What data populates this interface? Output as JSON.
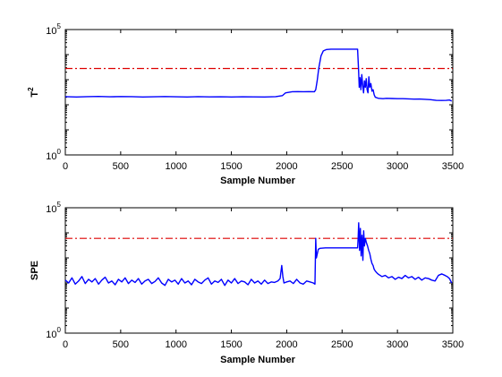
{
  "colors": {
    "signal": "#0000ff",
    "limit": "#dd0000",
    "axes": "#000000",
    "background": "#ffffff"
  },
  "chart_data": [
    {
      "type": "line",
      "title": "",
      "xlabel": "Sample Number",
      "ylabel": "T",
      "ylabel_sup": "2",
      "xlim": [
        0,
        3500
      ],
      "ylim": [
        1,
        100000
      ],
      "yscale": "log",
      "grid": false,
      "legend": "none",
      "xticks": [
        "0",
        "500",
        "1000",
        "1500",
        "2000",
        "2500",
        "3000",
        "3500"
      ],
      "yticks": [
        {
          "value": 1,
          "base": "10",
          "exp": "0"
        },
        {
          "value": 100000,
          "base": "10",
          "exp": "5"
        }
      ],
      "limit_line": {
        "y": 2800,
        "style": "dash-dot"
      },
      "series": [
        {
          "x": [
            0,
            100,
            200,
            300,
            400,
            500,
            600,
            700,
            800,
            900,
            1000,
            1100,
            1200,
            1300,
            1400,
            1500,
            1600,
            1700,
            1800,
            1900,
            1960,
            1990,
            2050,
            2100,
            2150,
            2200,
            2250,
            2262,
            2275,
            2290,
            2310,
            2330,
            2360,
            2400,
            2450,
            2500,
            2550,
            2600,
            2640,
            2648,
            2655,
            2662,
            2670,
            2678,
            2686,
            2694,
            2702,
            2710,
            2718,
            2726,
            2734,
            2742,
            2750,
            2760,
            2770,
            2780,
            2790,
            2800,
            2830,
            2870,
            2900,
            2950,
            3000,
            3050,
            3100,
            3150,
            3200,
            3250,
            3300,
            3350,
            3400,
            3440,
            3470,
            3490
          ],
          "values": [
            210,
            205,
            210,
            215,
            208,
            212,
            210,
            205,
            208,
            212,
            208,
            205,
            210,
            206,
            208,
            205,
            208,
            206,
            205,
            210,
            230,
            300,
            330,
            335,
            332,
            335,
            330,
            400,
            900,
            3000,
            9000,
            14000,
            16000,
            16500,
            16500,
            16500,
            16500,
            16500,
            16500,
            3000,
            500,
            1200,
            400,
            1600,
            600,
            300,
            900,
            500,
            1100,
            400,
            300,
            1300,
            500,
            700,
            350,
            400,
            250,
            200,
            180,
            175,
            180,
            178,
            175,
            175,
            172,
            168,
            170,
            165,
            160,
            150,
            148,
            150,
            155,
            140
          ]
        }
      ]
    },
    {
      "type": "line",
      "title": "",
      "xlabel": "Sample Number",
      "ylabel": "SPE",
      "ylabel_sup": "",
      "xlim": [
        0,
        3500
      ],
      "ylim": [
        1,
        100000
      ],
      "yscale": "log",
      "grid": false,
      "legend": "none",
      "xticks": [
        "0",
        "500",
        "1000",
        "1500",
        "2000",
        "2500",
        "3000",
        "3500"
      ],
      "yticks": [
        {
          "value": 1,
          "base": "10",
          "exp": "0"
        },
        {
          "value": 100000,
          "base": "10",
          "exp": "5"
        }
      ],
      "limit_line": {
        "y": 6000,
        "style": "dash-dot"
      },
      "series": [
        {
          "x": [
            0,
            30,
            60,
            90,
            120,
            150,
            180,
            210,
            240,
            270,
            300,
            330,
            360,
            390,
            420,
            450,
            480,
            510,
            540,
            570,
            600,
            630,
            660,
            690,
            720,
            750,
            780,
            810,
            840,
            870,
            900,
            930,
            960,
            990,
            1020,
            1050,
            1080,
            1110,
            1140,
            1170,
            1200,
            1230,
            1260,
            1290,
            1320,
            1350,
            1380,
            1410,
            1440,
            1470,
            1500,
            1530,
            1560,
            1590,
            1620,
            1650,
            1680,
            1710,
            1740,
            1770,
            1800,
            1830,
            1860,
            1890,
            1920,
            1940,
            1955,
            1965,
            1975,
            2000,
            2030,
            2060,
            2090,
            2120,
            2150,
            2180,
            2210,
            2240,
            2255,
            2262,
            2268,
            2285,
            2300,
            2350,
            2400,
            2450,
            2500,
            2550,
            2600,
            2640,
            2645,
            2650,
            2658,
            2665,
            2672,
            2680,
            2688,
            2695,
            2702,
            2710,
            2720,
            2730,
            2740,
            2750,
            2760,
            2770,
            2780,
            2790,
            2800,
            2815,
            2830,
            2860,
            2890,
            2920,
            2950,
            2980,
            3010,
            3040,
            3070,
            3100,
            3130,
            3160,
            3190,
            3220,
            3250,
            3280,
            3310,
            3340,
            3370,
            3400,
            3430,
            3450,
            3470,
            3490
          ],
          "values": [
            130,
            100,
            160,
            90,
            120,
            180,
            95,
            140,
            110,
            150,
            90,
            130,
            170,
            100,
            120,
            85,
            140,
            110,
            160,
            95,
            130,
            105,
            150,
            90,
            120,
            140,
            95,
            115,
            160,
            100,
            80,
            140,
            110,
            130,
            90,
            150,
            100,
            120,
            85,
            140,
            110,
            95,
            130,
            160,
            90,
            120,
            105,
            140,
            80,
            130,
            100,
            150,
            95,
            120,
            110,
            85,
            140,
            100,
            120,
            90,
            130,
            95,
            110,
            105,
            120,
            150,
            500,
            180,
            100,
            110,
            120,
            95,
            140,
            100,
            90,
            120,
            110,
            100,
            90,
            6000,
            1000,
            2200,
            2400,
            2500,
            2500,
            2500,
            2500,
            2500,
            2500,
            2500,
            6000,
            25000,
            2000,
            15000,
            1200,
            8000,
            800,
            12000,
            3000,
            6000,
            4000,
            3000,
            2000,
            1500,
            900,
            600,
            500,
            350,
            300,
            250,
            220,
            180,
            200,
            160,
            180,
            140,
            170,
            150,
            200,
            160,
            180,
            140,
            170,
            130,
            160,
            150,
            130,
            120,
            200,
            230,
            200,
            180,
            150,
            100
          ]
        }
      ]
    }
  ]
}
